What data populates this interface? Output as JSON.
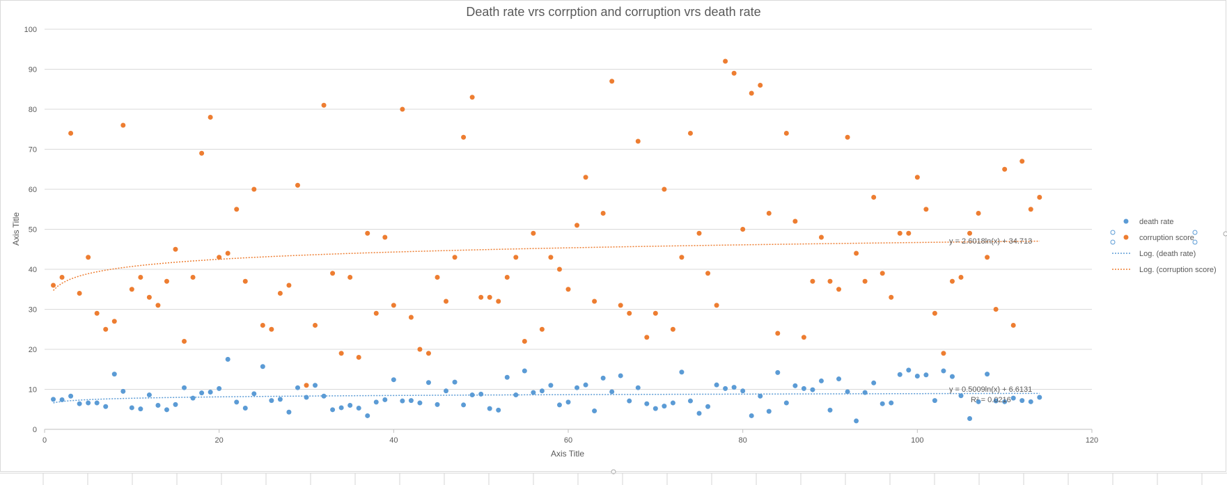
{
  "chart_data": {
    "type": "scatter",
    "title": "Death rate vrs corrption and corruption vrs death rate",
    "xlabel": "Axis Title",
    "ylabel": "Axis Title",
    "xlim": [
      0,
      120
    ],
    "ylim": [
      0,
      100
    ],
    "xticks": [
      "0",
      "20",
      "40",
      "60",
      "80",
      "100",
      "120"
    ],
    "yticks": [
      "0",
      "10",
      "20",
      "30",
      "40",
      "50",
      "60",
      "70",
      "80",
      "90",
      "100"
    ],
    "grid": "horizontal",
    "legend_position": "right",
    "series": [
      {
        "name": "death rate",
        "color": "#5b9bd5",
        "x": [
          1,
          2,
          3,
          4,
          5,
          6,
          7,
          8,
          9,
          10,
          11,
          12,
          13,
          14,
          15,
          16,
          17,
          18,
          19,
          20,
          21,
          22,
          23,
          24,
          25,
          26,
          27,
          28,
          29,
          30,
          31,
          32,
          33,
          34,
          35,
          36,
          37,
          38,
          39,
          40,
          41,
          42,
          43,
          44,
          45,
          46,
          47,
          48,
          49,
          50,
          51,
          52,
          53,
          54,
          55,
          56,
          57,
          58,
          59,
          60,
          61,
          62,
          63,
          64,
          65,
          66,
          67,
          68,
          69,
          70,
          71,
          72,
          73,
          74,
          75,
          76,
          77,
          78,
          79,
          80,
          81,
          82,
          83,
          84,
          85,
          86,
          87,
          88,
          89,
          90,
          91,
          92,
          93,
          94,
          95,
          96,
          97,
          98,
          99,
          100,
          101,
          102,
          103,
          104,
          105,
          106,
          107,
          108,
          109,
          110,
          111,
          112,
          113,
          114
        ],
        "values": [
          7.5,
          7.4,
          8.3,
          6.4,
          6.6,
          6.6,
          5.7,
          13.8,
          9.5,
          5.4,
          5.1,
          8.6,
          6.0,
          4.9,
          6.2,
          10.4,
          7.8,
          9.1,
          9.3,
          10.2,
          17.5,
          6.8,
          5.3,
          8.9,
          15.7,
          7.2,
          7.5,
          4.3,
          10.4,
          8.0,
          11.0,
          8.3,
          4.9,
          5.4,
          6.0,
          5.3,
          3.4,
          6.8,
          7.4,
          12.4,
          7.1,
          7.2,
          6.6,
          11.7,
          6.2,
          9.6,
          11.8,
          6.1,
          8.6,
          8.8,
          5.2,
          4.8,
          13.0,
          8.6,
          14.6,
          9.2,
          9.6,
          11.0,
          6.1,
          6.8,
          10.4,
          11.1,
          4.6,
          12.8,
          9.4,
          13.4,
          7.1,
          10.4,
          6.4,
          5.2,
          5.8,
          6.6,
          14.3,
          7.1,
          4.0,
          5.7,
          11.1,
          10.2,
          10.5,
          9.6,
          3.4,
          8.3,
          4.5,
          14.2,
          6.6,
          10.9,
          10.2,
          9.9,
          12.1,
          4.8,
          12.6,
          9.4,
          2.1,
          9.2,
          11.6,
          6.4,
          6.6,
          13.7,
          14.8,
          13.3,
          13.6,
          7.2,
          14.6,
          13.2,
          8.4,
          2.7,
          6.9,
          13.8,
          7.1,
          6.9,
          7.8,
          7.2,
          6.9,
          8.0
        ],
        "trendline": {
          "name": "Log. (death rate)",
          "type": "logarithmic",
          "a": 0.5009,
          "b": 6.6131,
          "equation": "y = 0.5009ln(x) + 6.6131",
          "r2_label": "R² = 0.0216"
        }
      },
      {
        "name": "corruption score",
        "color": "#ed7d31",
        "x": [
          1,
          2,
          3,
          4,
          5,
          6,
          7,
          8,
          9,
          10,
          11,
          12,
          13,
          14,
          15,
          16,
          17,
          18,
          19,
          20,
          21,
          22,
          23,
          24,
          25,
          26,
          27,
          28,
          29,
          30,
          31,
          32,
          33,
          34,
          35,
          36,
          37,
          38,
          39,
          40,
          41,
          42,
          43,
          44,
          45,
          46,
          47,
          48,
          49,
          50,
          51,
          52,
          53,
          54,
          55,
          56,
          57,
          58,
          59,
          60,
          61,
          62,
          63,
          64,
          65,
          66,
          67,
          68,
          69,
          70,
          71,
          72,
          73,
          74,
          75,
          76,
          77,
          78,
          79,
          80,
          81,
          82,
          83,
          84,
          85,
          86,
          87,
          88,
          89,
          90,
          91,
          92,
          93,
          94,
          95,
          96,
          97,
          98,
          99,
          100,
          101,
          102,
          103,
          104,
          105,
          106,
          107,
          108,
          109,
          110,
          111,
          112,
          113,
          114
        ],
        "values": [
          36,
          38,
          74,
          34,
          43,
          29,
          25,
          27,
          76,
          35,
          38,
          33,
          31,
          37,
          45,
          22,
          38,
          69,
          78,
          43,
          44,
          55,
          37,
          60,
          26,
          25,
          34,
          36,
          61,
          11,
          26,
          81,
          39,
          19,
          38,
          18,
          49,
          29,
          48,
          31,
          80,
          28,
          20,
          19,
          38,
          32,
          43,
          73,
          83,
          33,
          33,
          32,
          38,
          43,
          22,
          49,
          25,
          43,
          40,
          35,
          51,
          63,
          32,
          54,
          87,
          31,
          29,
          72,
          23,
          29,
          60,
          25,
          43,
          74,
          49,
          39,
          31,
          92,
          89,
          50,
          84,
          86,
          54,
          24,
          74,
          52,
          23,
          37,
          48,
          37,
          35,
          73,
          44,
          37,
          58,
          39,
          33,
          49,
          49,
          63,
          55,
          29,
          19,
          37,
          38,
          49,
          54,
          43,
          30,
          65,
          26,
          67,
          55,
          58
        ],
        "trendline": {
          "name": "Log. (corruption score)",
          "type": "logarithmic",
          "a": 2.6018,
          "b": 34.713,
          "equation": "y = 2.6018ln(x) + 34.713"
        }
      }
    ]
  }
}
